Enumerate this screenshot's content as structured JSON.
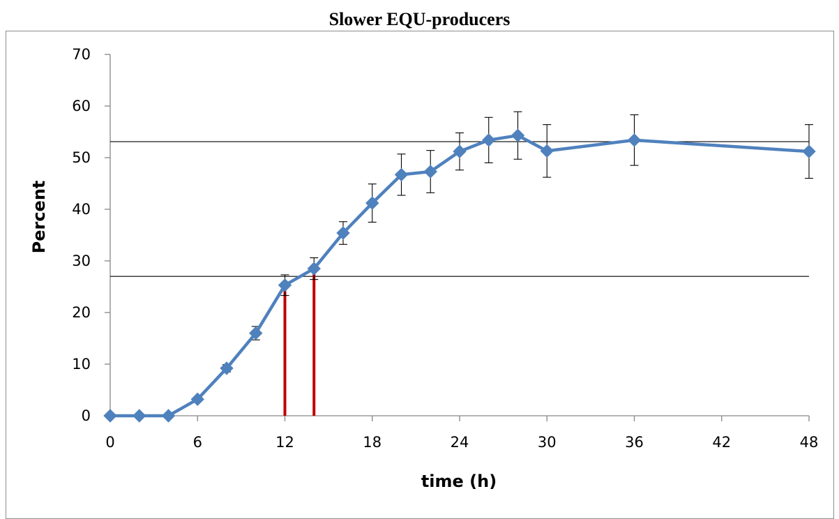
{
  "chart_data": {
    "type": "line",
    "title": "Slower EQU-producers",
    "xlabel": "time (h)",
    "ylabel": "Percent",
    "xlim": [
      0,
      48
    ],
    "ylim": [
      0,
      70
    ],
    "x_ticks": [
      0,
      6,
      12,
      18,
      24,
      30,
      36,
      42,
      48
    ],
    "y_ticks": [
      0,
      10,
      20,
      30,
      40,
      50,
      60,
      70
    ],
    "grid": false,
    "legend": "none",
    "series": [
      {
        "color": "#4f81bd",
        "marker": "diamond",
        "x": [
          0,
          2,
          4,
          6,
          8,
          10,
          12,
          14,
          16,
          18,
          20,
          22,
          24,
          26,
          28,
          30,
          36,
          48
        ],
        "y": [
          0,
          0,
          0,
          3.2,
          9.2,
          16.0,
          25.3,
          28.5,
          35.4,
          41.2,
          46.7,
          47.3,
          51.2,
          53.4,
          54.3,
          51.3,
          53.4,
          51.2
        ],
        "error": [
          0,
          0,
          0,
          0,
          0.7,
          1.3,
          2.0,
          2.1,
          2.2,
          3.7,
          4.0,
          4.1,
          3.6,
          4.4,
          4.6,
          5.1,
          4.9,
          5.2
        ]
      }
    ],
    "reference_lines": {
      "horizontal": [
        53.1,
        27.0
      ],
      "horizontal_color": "#000000",
      "vertical": [
        {
          "x": 12,
          "y_top": 25.3
        },
        {
          "x": 14,
          "y_top": 28.5
        }
      ],
      "vertical_color": "#c00000"
    }
  }
}
